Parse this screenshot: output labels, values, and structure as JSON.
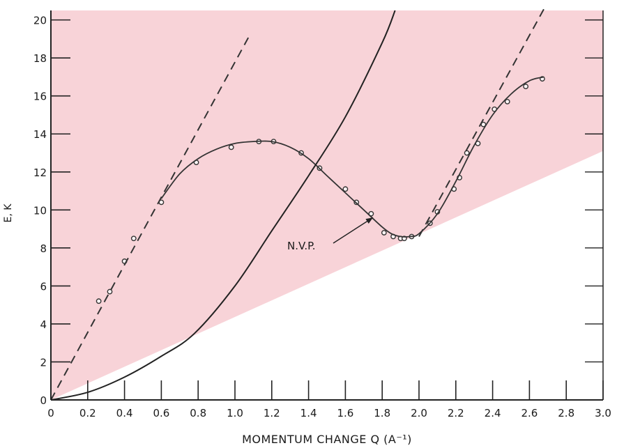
{
  "chart_data": {
    "type": "scatter",
    "title": "",
    "xlabel": "MOMENTUM CHANGE  Q (A⁻¹)",
    "ylabel": "E, K",
    "xlim": [
      0,
      3.0
    ],
    "ylim": [
      0,
      20.5
    ],
    "x_ticks": [
      0,
      0.2,
      0.4,
      0.6,
      0.8,
      1.0,
      1.2,
      1.4,
      1.6,
      1.8,
      2.0,
      2.2,
      2.4,
      2.6,
      2.8,
      3.0
    ],
    "x_tick_labels": [
      "0",
      "0.2",
      "0.4",
      "0.6",
      "0.8",
      "1.0",
      "1.2",
      "1.4",
      "1.6",
      "1.8",
      "2.0",
      "2.2",
      "2.4",
      "2.6",
      "2.8",
      "3.0"
    ],
    "y_ticks": [
      0,
      2,
      4,
      6,
      8,
      10,
      12,
      14,
      16,
      18,
      20
    ],
    "y_tick_labels": [
      "0",
      "2",
      "4",
      "6",
      "8",
      "10",
      "12",
      "14",
      "16",
      "18",
      "20"
    ],
    "grid": false,
    "shaded_region": {
      "color": "#f8d3d8",
      "lower_boundary": [
        [
          0,
          0
        ],
        [
          3.0,
          13.1
        ]
      ]
    },
    "annotation": {
      "text": "N.V.P.",
      "arrow_to": [
        1.75,
        9.6
      ]
    },
    "series": [
      {
        "style": "points",
        "x": [
          0.26,
          0.32,
          0.4,
          0.45,
          0.6,
          0.79,
          0.98,
          1.13,
          1.21,
          1.36,
          1.46,
          1.6,
          1.66,
          1.74,
          1.81,
          1.86,
          1.9,
          1.92,
          1.96,
          2.06,
          2.1,
          2.19,
          2.22,
          2.26,
          2.32,
          2.35,
          2.41,
          2.48,
          2.58,
          2.67
        ],
        "y": [
          5.2,
          5.7,
          7.3,
          8.5,
          10.4,
          12.5,
          13.3,
          13.6,
          13.6,
          13.0,
          12.2,
          11.1,
          10.4,
          9.8,
          8.8,
          8.6,
          8.5,
          8.5,
          8.6,
          9.3,
          9.9,
          11.1,
          11.7,
          13.0,
          13.5,
          14.5,
          15.3,
          15.7,
          16.5,
          16.9
        ]
      },
      {
        "style": "smooth",
        "x": [
          0.6,
          0.7,
          0.8,
          0.9,
          1.0,
          1.1,
          1.2,
          1.3,
          1.4,
          1.5,
          1.6,
          1.7,
          1.8,
          1.85,
          1.9,
          1.95,
          2.0,
          2.1,
          2.2,
          2.3,
          2.4,
          2.5,
          2.6,
          2.68
        ],
        "y": [
          10.6,
          11.9,
          12.7,
          13.2,
          13.5,
          13.6,
          13.6,
          13.3,
          12.7,
          11.8,
          10.9,
          10.0,
          9.1,
          8.75,
          8.6,
          8.6,
          8.75,
          9.8,
          11.5,
          13.4,
          15.0,
          16.1,
          16.8,
          17.0
        ]
      },
      {
        "style": "dashed",
        "x": [
          0,
          1.08
        ],
        "y": [
          0,
          19.2
        ]
      },
      {
        "style": "dashed",
        "x": [
          2.0,
          2.68
        ],
        "y": [
          8.6,
          20.6
        ]
      },
      {
        "style": "solid",
        "x": [
          0,
          0.2,
          0.4,
          0.6,
          0.78,
          1.0,
          1.2,
          1.4,
          1.6,
          1.8,
          1.87
        ],
        "y": [
          0,
          0.4,
          1.2,
          2.3,
          3.5,
          6.0,
          8.9,
          11.8,
          14.9,
          18.8,
          20.5
        ]
      }
    ]
  }
}
